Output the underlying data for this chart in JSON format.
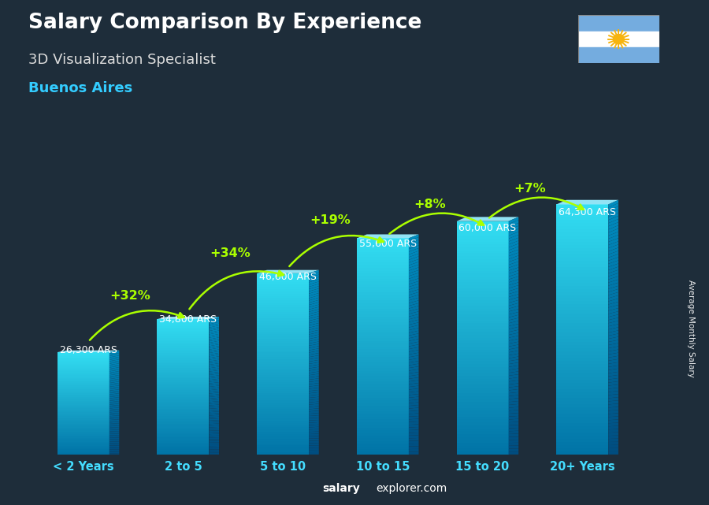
{
  "title": "Salary Comparison By Experience",
  "subtitle": "3D Visualization Specialist",
  "city": "Buenos Aires",
  "categories": [
    "< 2 Years",
    "2 to 5",
    "5 to 10",
    "10 to 15",
    "15 to 20",
    "20+ Years"
  ],
  "values": [
    26300,
    34800,
    46600,
    55600,
    60000,
    64300
  ],
  "labels": [
    "26,300 ARS",
    "34,800 ARS",
    "46,600 ARS",
    "55,600 ARS",
    "60,000 ARS",
    "64,300 ARS"
  ],
  "pct_changes": [
    "+32%",
    "+34%",
    "+19%",
    "+8%",
    "+7%"
  ],
  "bar_front_top": "#55ddff",
  "bar_front_bot": "#0077aa",
  "bar_right_top": "#0088bb",
  "bar_right_bot": "#004466",
  "bar_top_face": "#88eeff",
  "bg_color": "#1e2d3a",
  "title_color": "#ffffff",
  "subtitle_color": "#dddddd",
  "city_color": "#33ccff",
  "category_color": "#44ddff",
  "label_color": "#ffffff",
  "pct_color": "#aaff00",
  "arrow_color": "#aaff00",
  "watermark_bold": "salary",
  "watermark_normal": "explorer.com",
  "ylabel_text": "Average Monthly Salary",
  "flag_stripe_top": "#74acdf",
  "flag_stripe_mid": "#ffffff",
  "flag_stripe_bot": "#74acdf",
  "flag_sun": "#f6b40e"
}
